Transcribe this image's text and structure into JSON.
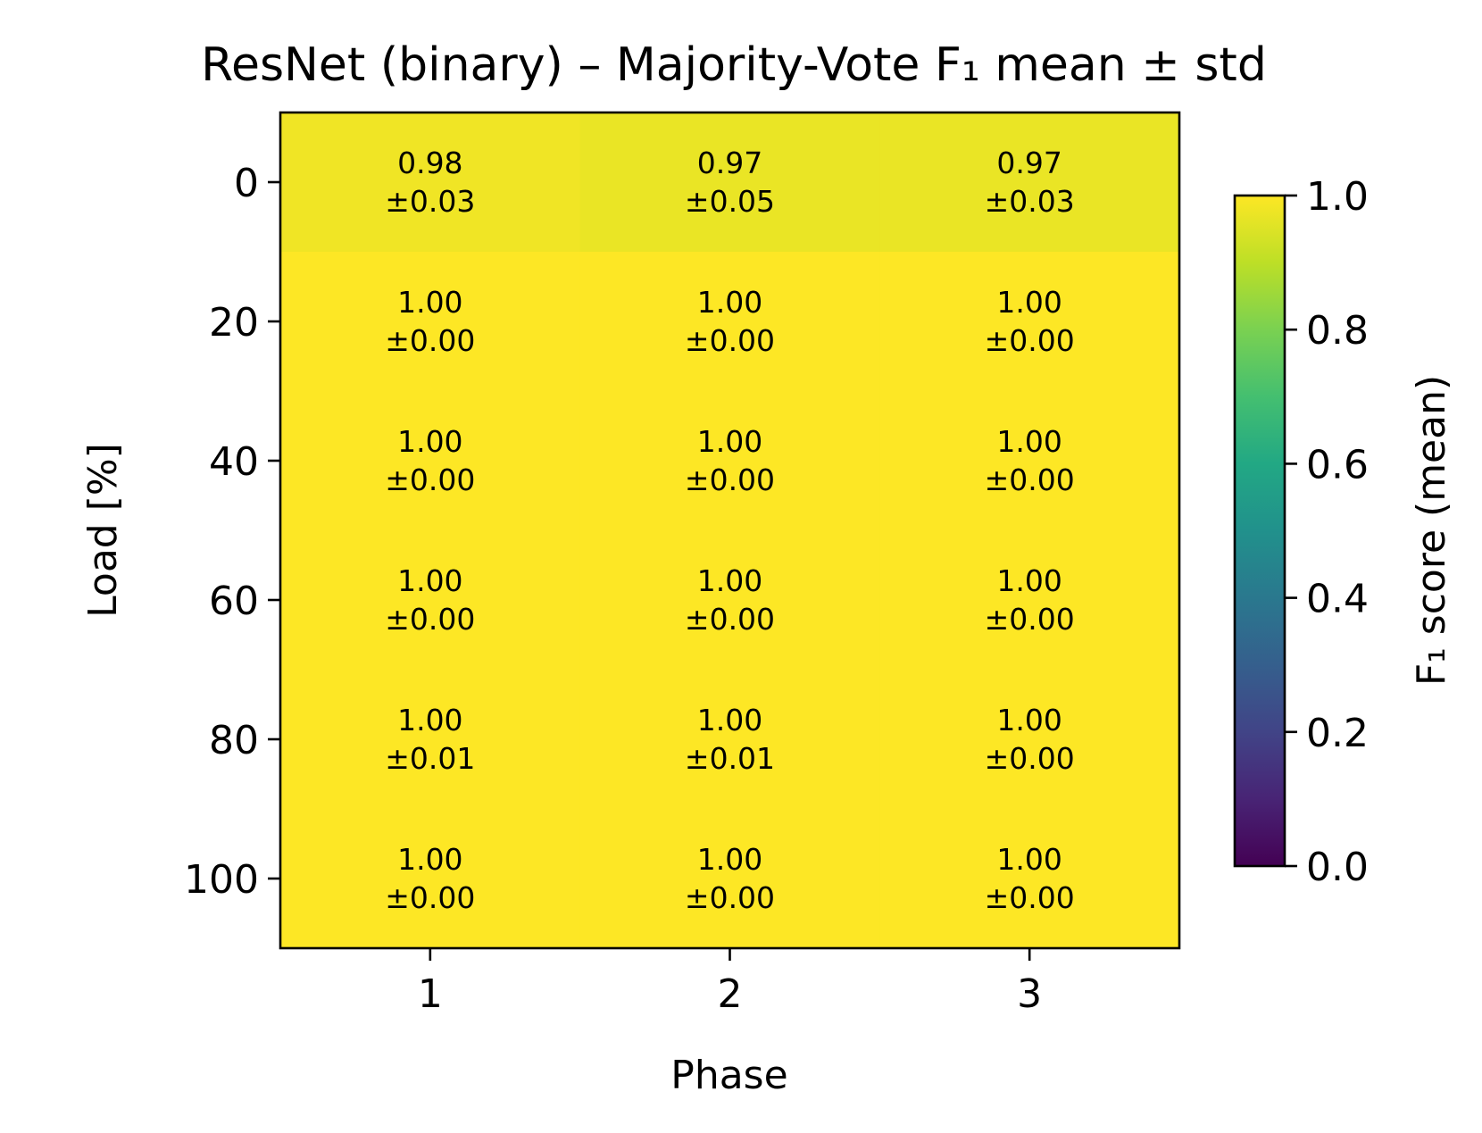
{
  "chart_data": {
    "type": "heatmap",
    "title": "ResNet (binary) – Majority-Vote F₁ mean ± std",
    "xlabel": "Phase",
    "ylabel": "Load [%]",
    "x_categories": [
      "1",
      "2",
      "3"
    ],
    "y_categories": [
      "0",
      "20",
      "40",
      "60",
      "80",
      "100"
    ],
    "mean": [
      [
        0.98,
        0.97,
        0.97
      ],
      [
        1.0,
        1.0,
        1.0
      ],
      [
        1.0,
        1.0,
        1.0
      ],
      [
        1.0,
        1.0,
        1.0
      ],
      [
        1.0,
        1.0,
        1.0
      ],
      [
        1.0,
        1.0,
        1.0
      ]
    ],
    "std": [
      [
        0.03,
        0.05,
        0.03
      ],
      [
        0.0,
        0.0,
        0.0
      ],
      [
        0.0,
        0.0,
        0.0
      ],
      [
        0.0,
        0.0,
        0.0
      ],
      [
        0.01,
        0.01,
        0.0
      ],
      [
        0.0,
        0.0,
        0.0
      ]
    ],
    "colorbar": {
      "label": "F₁ score (mean)",
      "range": [
        0.0,
        1.0
      ],
      "ticks": [
        "0.0",
        "0.2",
        "0.4",
        "0.6",
        "0.8",
        "1.0"
      ],
      "colormap": "viridis"
    }
  }
}
